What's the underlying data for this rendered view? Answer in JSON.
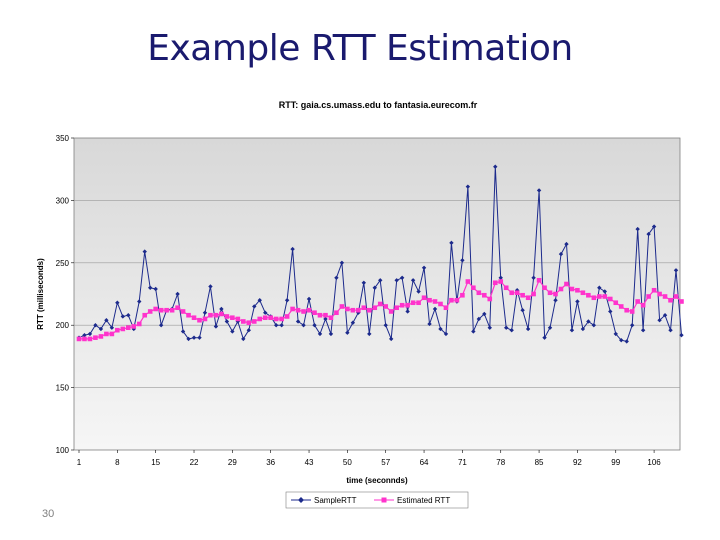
{
  "slide": {
    "title": "Example RTT Estimation",
    "page_number": "30"
  },
  "colors": {
    "title": "#1a1a6e",
    "sample": "#1c2a8c",
    "estimated": "#ff33cc",
    "plot_bg_top": "#d8d8d8",
    "plot_bg_bottom": "#f6f6f6"
  },
  "chart_data": {
    "type": "line",
    "title": "RTT: gaia.cs.umass.edu to fantasia.eurecom.fr",
    "xlabel": "time (seconnds)",
    "ylabel": "RTT (milliseconds)",
    "ylim": [
      100,
      350
    ],
    "yticks": [
      "100",
      "150",
      "200",
      "250",
      "300",
      "350"
    ],
    "xlim": [
      1,
      110
    ],
    "xticks": [
      "1",
      "8",
      "15",
      "22",
      "29",
      "36",
      "43",
      "50",
      "57",
      "64",
      "71",
      "78",
      "85",
      "92",
      "99",
      "106"
    ],
    "grid": "horizontal",
    "legend_position": "bottom",
    "series": [
      {
        "name": "SampleRTT",
        "marker": "diamond",
        "values": [
          190,
          192,
          193,
          200,
          197,
          204,
          198,
          218,
          207,
          208,
          197,
          219,
          259,
          230,
          229,
          200,
          212,
          213,
          225,
          195,
          189,
          190,
          190,
          210,
          231,
          199,
          213,
          203,
          195,
          203,
          189,
          196,
          215,
          220,
          210,
          207,
          200,
          200,
          220,
          261,
          203,
          200,
          221,
          200,
          193,
          205,
          193,
          238,
          250,
          194,
          202,
          210,
          234,
          193,
          230,
          236,
          200,
          189,
          236,
          238,
          211,
          236,
          227,
          246,
          201,
          213,
          197,
          193,
          266,
          219,
          252,
          311,
          195,
          205,
          209,
          198,
          327,
          238,
          198,
          196,
          228,
          212,
          197,
          238,
          308,
          190,
          198,
          220,
          257,
          265,
          196,
          219,
          197,
          203,
          200,
          230,
          227,
          211,
          193,
          188,
          187,
          200,
          277,
          196,
          273,
          279,
          204,
          208,
          196,
          244,
          192
        ]
      },
      {
        "name": "Estimated RTT",
        "marker": "square",
        "values": [
          189,
          189,
          189,
          190,
          191,
          193,
          193,
          196,
          197,
          198,
          199,
          201,
          208,
          211,
          213,
          212,
          212,
          212,
          214,
          211,
          208,
          206,
          204,
          205,
          208,
          208,
          209,
          207,
          206,
          205,
          203,
          202,
          203,
          205,
          206,
          206,
          205,
          205,
          207,
          213,
          212,
          211,
          212,
          210,
          208,
          208,
          206,
          210,
          215,
          213,
          212,
          212,
          214,
          212,
          214,
          217,
          215,
          211,
          214,
          216,
          216,
          218,
          218,
          222,
          220,
          219,
          217,
          214,
          220,
          220,
          224,
          235,
          230,
          226,
          224,
          221,
          234,
          235,
          230,
          226,
          226,
          224,
          222,
          225,
          236,
          230,
          226,
          225,
          229,
          233,
          229,
          228,
          226,
          224,
          222,
          223,
          223,
          221,
          218,
          215,
          212,
          211,
          219,
          216,
          223,
          228,
          225,
          223,
          220,
          223,
          219
        ]
      }
    ]
  }
}
